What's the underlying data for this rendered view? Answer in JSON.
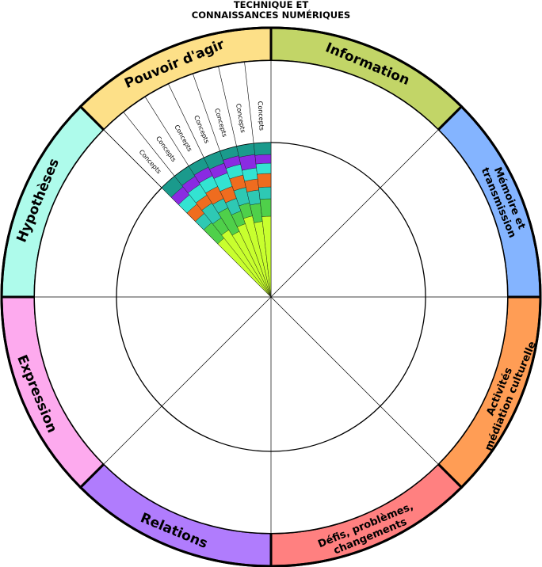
{
  "title": {
    "line1": "TECHNIQUE ET",
    "line2": "CONNAISSANCES NUMÉRIQUES"
  },
  "segments": [
    {
      "label": [
        "Information"
      ],
      "color": "#c2d567"
    },
    {
      "label": [
        "Mémoire et",
        "transmission"
      ],
      "color": "#84b4ff"
    },
    {
      "label": [
        "Activités",
        "médiation culturelle"
      ],
      "color": "#ff9d55"
    },
    {
      "label": [
        "Défis, problèmes,",
        "changements"
      ],
      "color": "#ff8080"
    },
    {
      "label": [
        "Relations"
      ],
      "color": "#b07cfd"
    },
    {
      "label": [
        "Expression"
      ],
      "color": "#fdaaee"
    },
    {
      "label": [
        "Hypothèses"
      ],
      "color": "#aefbeb"
    },
    {
      "label": [
        "Pouvoir d'agir"
      ],
      "color": "#fde088"
    }
  ],
  "concepts": {
    "label": "Concepts",
    "count": 7,
    "layers": [
      {
        "name": "lime",
        "color": "#c8ff2e"
      },
      {
        "name": "green",
        "color": "#4fd04a"
      },
      {
        "name": "teal",
        "color": "#2ec9b4"
      },
      {
        "name": "orange",
        "color": "#ef6c1f"
      },
      {
        "name": "cyan",
        "color": "#33e3d2"
      },
      {
        "name": "purple",
        "color": "#8a2be2"
      },
      {
        "name": "darkteal",
        "color": "#1a9a8c"
      }
    ]
  }
}
